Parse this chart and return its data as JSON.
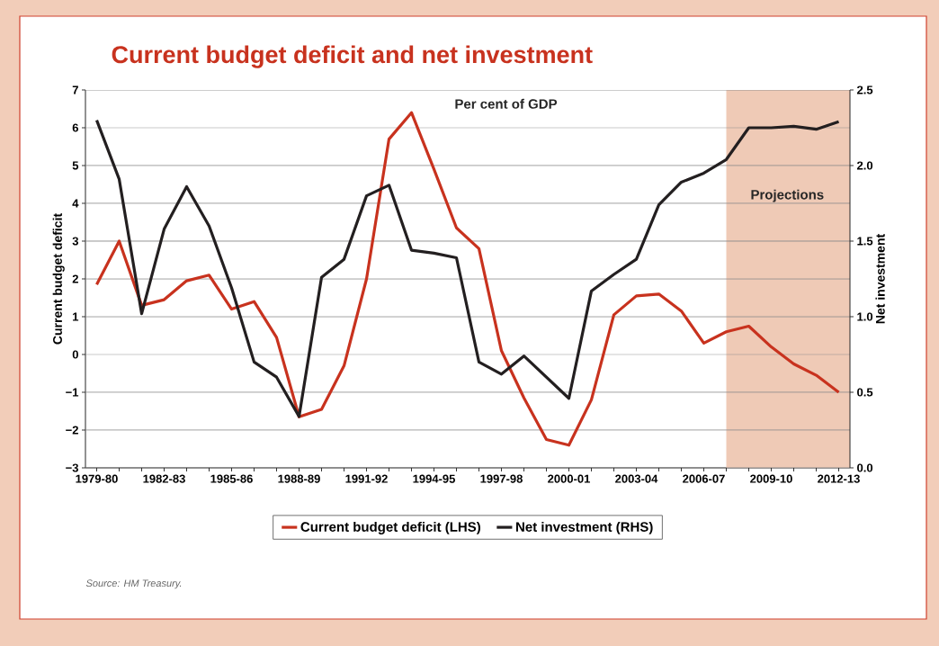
{
  "chart_data": {
    "type": "line",
    "title": "Current budget deficit and net investment",
    "ylabel": "Current budget deficit",
    "y2label": "Net investment",
    "annotations": [
      "Per cent of GDP",
      "Projections",
      "Source: HM Treasury."
    ],
    "categories": [
      "1979-80",
      null,
      null,
      "1982-83",
      null,
      null,
      "1985-86",
      null,
      null,
      "1988-89",
      null,
      null,
      "1991-92",
      null,
      null,
      "1994-95",
      null,
      null,
      "1997-98",
      null,
      null,
      "2000-01",
      null,
      null,
      "2003-04",
      null,
      null,
      "2006-07",
      null,
      null,
      "2009-10",
      null,
      null,
      "2012-13"
    ],
    "series": [
      {
        "name": "Current budget deficit (LHS)",
        "color": "#c8321e",
        "values": [
          1.85,
          3.0,
          1.3,
          1.45,
          1.95,
          2.1,
          1.2,
          1.4,
          0.45,
          -1.65,
          -1.45,
          -0.3,
          2.0,
          5.7,
          6.4,
          4.9,
          3.35,
          2.8,
          0.1,
          -1.15,
          -2.25,
          -2.4,
          -1.2,
          1.05,
          1.55,
          1.6,
          1.15,
          0.3,
          0.6,
          0.75,
          0.2,
          -0.25,
          -0.55,
          -1.0
        ]
      },
      {
        "name": "Net investment (RHS)",
        "color": "#231f20",
        "axis": "y2",
        "values": [
          2.3,
          1.91,
          1.02,
          1.58,
          1.86,
          1.6,
          1.19,
          0.7,
          0.6,
          0.34,
          1.26,
          1.38,
          1.8,
          1.87,
          1.44,
          1.42,
          1.39,
          0.7,
          0.62,
          0.74,
          0.6,
          0.46,
          1.17,
          1.28,
          1.38,
          1.74,
          1.89,
          1.95,
          2.04,
          2.25,
          2.25,
          2.26,
          2.24,
          2.29
        ]
      }
    ],
    "ylim": [
      -3,
      7
    ],
    "yticks": [
      {
        "value": -3,
        "label": "−3"
      },
      {
        "value": -2,
        "label": "−2"
      },
      {
        "value": -1,
        "label": "−1"
      },
      0,
      1,
      2,
      3,
      4,
      5,
      6,
      7
    ],
    "y2lim": [
      0,
      2.5
    ],
    "y2ticks": [
      {
        "value": 0,
        "label": "0.0"
      },
      {
        "value": 0.5,
        "label": "0.5"
      },
      {
        "value": 1,
        "label": "1.0"
      },
      {
        "value": 1.5,
        "label": "1.5"
      },
      {
        "value": 2,
        "label": "2.0"
      },
      {
        "value": 2.5,
        "label": "2.5"
      }
    ],
    "grid": "y",
    "legend": "bottom",
    "line_style": "solid"
  }
}
